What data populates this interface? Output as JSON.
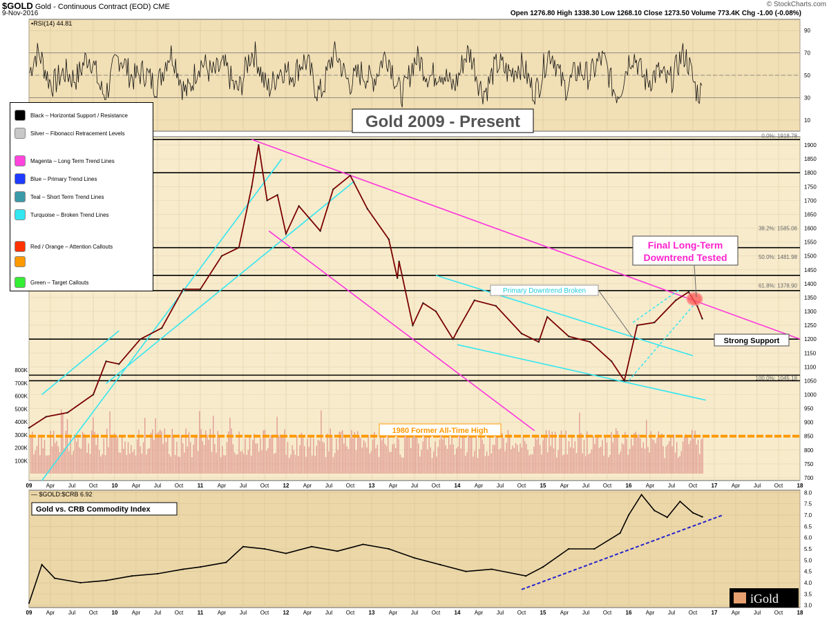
{
  "header": {
    "symbol": "$GOLD",
    "description": "Gold - Continuous Contract (EOD)",
    "exchange": "CME",
    "date": "9-Nov-2016",
    "brand": "© StockCharts.com",
    "ohlc": "Open 1276.80  High 1338.30  Low 1268.10  Close 1273.50  Volume 773.4K  Chg -1.00 (-0.08%)"
  },
  "title": "Gold 2009 - Present",
  "legend": {
    "items": [
      {
        "label": "Black – Horizontal Support / Resistance",
        "color": "#000000"
      },
      {
        "label": "Silver – Fibonacci Retracement Levels",
        "color": "#c8c8c8"
      },
      {
        "label": "Magenta – Long Term Trend Lines",
        "color": "#ff44dd"
      },
      {
        "label": "Blue – Primary Trend Lines",
        "color": "#1f3bff"
      },
      {
        "label": "Teal – Short Term Trend Lines",
        "color": "#3a9aa8"
      },
      {
        "label": "Turquoise – Broken Trend Lines",
        "color": "#33e6f0"
      },
      {
        "label": "Red / Orange – Attention Callouts",
        "color": "#ff3300"
      },
      {
        "label": "Orange",
        "color": "#ff9900"
      },
      {
        "label": "Green – Target Callouts",
        "color": "#33ee33"
      }
    ]
  },
  "annotations": {
    "final_downtrend": "Final Long-Term Downtrend Tested",
    "final_downtrend_l1": "Final Long-Term",
    "final_downtrend_l2": "Downtrend Tested",
    "primary_broken": "Primary Downtrend Broken",
    "strong_support": "Strong Support",
    "former_ath": "1980 Former All-Time High",
    "ratio_title": "Gold vs. CRB Commodity Index"
  },
  "chart_data": [
    {
      "type": "line",
      "title": "RSI(14) 44.81",
      "ylim": [
        0,
        100
      ],
      "yticks": [
        10,
        30,
        50,
        70,
        90
      ],
      "reference_lines": [
        30,
        50,
        70
      ],
      "last_value": 44.81
    },
    {
      "type": "line",
      "title": "$GOLD Gold - Continuous Contract (EOD)",
      "xlabel": "",
      "ylabel": "",
      "ylim": [
        690,
        1930
      ],
      "yticks": [
        700,
        750,
        800,
        850,
        900,
        950,
        1000,
        1050,
        1100,
        1150,
        1200,
        1250,
        1300,
        1350,
        1400,
        1450,
        1500,
        1550,
        1600,
        1650,
        1700,
        1750,
        1800,
        1850,
        1900
      ],
      "x_ticks": [
        "09",
        "Apr",
        "Jul",
        "Oct",
        "10",
        "Apr",
        "Jul",
        "Oct",
        "11",
        "Apr",
        "Jul",
        "Oct",
        "12",
        "Apr",
        "Jul",
        "Oct",
        "13",
        "Apr",
        "Jul",
        "Oct",
        "14",
        "Apr",
        "Jul",
        "Oct",
        "15",
        "Apr",
        "Jul",
        "Oct",
        "16",
        "Apr",
        "Jul",
        "Oct",
        "17",
        "Apr",
        "Jul",
        "Oct",
        "18"
      ],
      "x": [
        2009.0,
        2009.2,
        2009.45,
        2009.75,
        2009.9,
        2010.05,
        2010.3,
        2010.55,
        2010.8,
        2011.0,
        2011.25,
        2011.45,
        2011.6,
        2011.68,
        2011.78,
        2011.9,
        2012.0,
        2012.15,
        2012.4,
        2012.55,
        2012.75,
        2012.95,
        2013.2,
        2013.3,
        2013.32,
        2013.48,
        2013.6,
        2013.75,
        2013.95,
        2014.0,
        2014.2,
        2014.45,
        2014.75,
        2014.95,
        2015.05,
        2015.3,
        2015.55,
        2015.8,
        2015.95,
        2016.1,
        2016.3,
        2016.55,
        2016.7,
        2016.8,
        2016.86
      ],
      "values": [
        880,
        920,
        935,
        1000,
        1120,
        1110,
        1200,
        1240,
        1380,
        1380,
        1500,
        1530,
        1750,
        1900,
        1700,
        1720,
        1580,
        1680,
        1590,
        1740,
        1790,
        1670,
        1560,
        1420,
        1480,
        1250,
        1330,
        1300,
        1200,
        1230,
        1340,
        1320,
        1220,
        1190,
        1280,
        1210,
        1190,
        1120,
        1050,
        1250,
        1260,
        1340,
        1370,
        1320,
        1273.5
      ],
      "volume_ylim": [
        0,
        800000
      ],
      "volume_ticks": [
        "100K",
        "200K",
        "300K",
        "400K",
        "500K",
        "600K",
        "700K",
        "800K"
      ],
      "horizontal_support": [
        1920,
        1800,
        1530,
        1430,
        1375,
        1200,
        1070,
        1050
      ],
      "fibonacci_levels": [
        {
          "label": "0.0%: 1918.78",
          "value": 1918.78
        },
        {
          "label": "38.2%: 1585.06",
          "value": 1585.06
        },
        {
          "label": "50.0%: 1481.98",
          "value": 1481.98
        },
        {
          "label": "61.8%: 1378.90",
          "value": 1378.9
        },
        {
          "label": "100.0%: 1045.18",
          "value": 1045.18
        }
      ],
      "former_all_time_high": 850
    },
    {
      "type": "line",
      "title": "$GOLD:$CRB 6.92",
      "ylim": [
        2.9,
        8.1
      ],
      "yticks": [
        3.0,
        3.5,
        4.0,
        4.5,
        5.0,
        5.5,
        6.0,
        6.5,
        7.0,
        7.5,
        8.0
      ],
      "x": [
        2009.0,
        2009.15,
        2009.3,
        2009.6,
        2009.9,
        2010.2,
        2010.5,
        2010.8,
        2011.0,
        2011.3,
        2011.5,
        2011.75,
        2012.0,
        2012.3,
        2012.6,
        2012.9,
        2013.2,
        2013.5,
        2013.8,
        2014.1,
        2014.4,
        2014.8,
        2015.0,
        2015.3,
        2015.6,
        2015.9,
        2016.0,
        2016.15,
        2016.3,
        2016.45,
        2016.6,
        2016.75,
        2016.86
      ],
      "values": [
        3.1,
        4.8,
        4.2,
        4.0,
        4.1,
        4.3,
        4.4,
        4.6,
        4.7,
        4.9,
        5.6,
        5.5,
        5.3,
        5.6,
        5.4,
        5.7,
        5.5,
        5.1,
        4.8,
        4.5,
        4.6,
        4.3,
        4.7,
        5.5,
        5.5,
        6.2,
        7.0,
        7.9,
        7.2,
        6.9,
        7.6,
        7.1,
        6.92
      ],
      "last_value": 6.92
    }
  ]
}
